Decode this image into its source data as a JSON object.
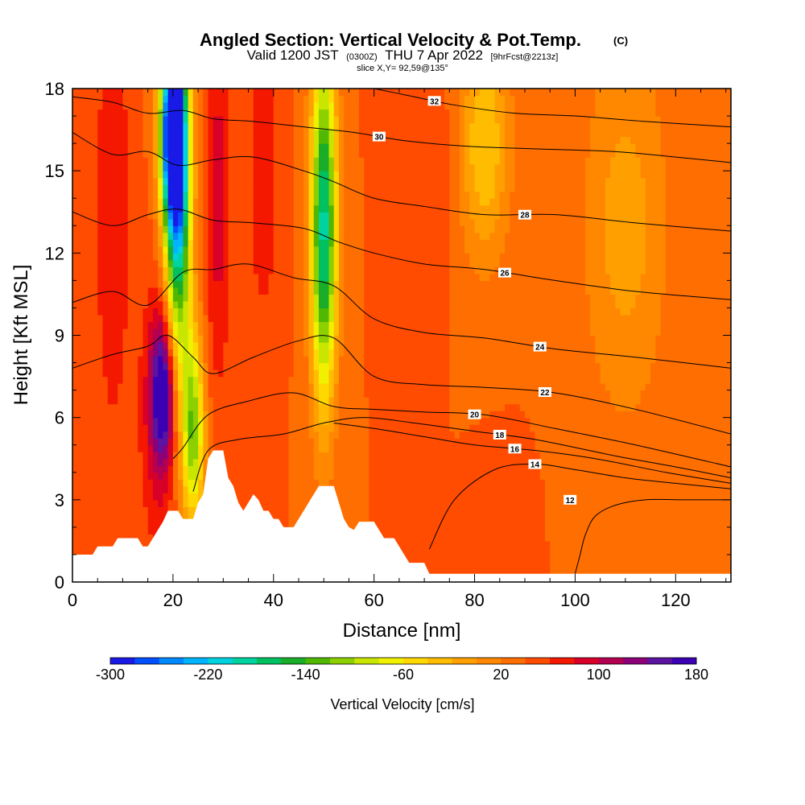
{
  "header": {
    "title_main": "Angled Section: Vertical Velocity & Pot.Temp.",
    "title_units": "(C)",
    "valid_prefix": "Valid 1200 JST",
    "valid_utc": "(0300Z)",
    "valid_date": "THU 7 Apr 2022",
    "valid_forecast": "[9hrFcst@2213z]",
    "slice_info": "slice X,Y= 92,59@135°"
  },
  "chart_data": {
    "type": "heatmap",
    "xlabel": "Distance [nm]",
    "ylabel": "Height [Kft MSL]",
    "xlim": [
      0,
      131
    ],
    "ylim": [
      0,
      18
    ],
    "x_ticks": [
      "0",
      "20",
      "40",
      "60",
      "80",
      "100",
      "120"
    ],
    "y_ticks": [
      "0",
      "3",
      "6",
      "9",
      "12",
      "15",
      "18"
    ],
    "grid": false,
    "background_velocity": 40,
    "velocity_features": [
      {
        "x": 8,
        "y": 13.5,
        "sx": 2.5,
        "sy": 6,
        "v": 80
      },
      {
        "x": 18,
        "y": 7,
        "sx": 1.6,
        "sy": 1.8,
        "v": 170
      },
      {
        "x": 17,
        "y": 6,
        "sx": 2.5,
        "sy": 3.5,
        "v": 90
      },
      {
        "x": 20,
        "y": 16.5,
        "sx": 1.7,
        "sy": 2.2,
        "v": -320
      },
      {
        "x": 21,
        "y": 13.5,
        "sx": 1.8,
        "sy": 4,
        "v": -200
      },
      {
        "x": 24,
        "y": 5.5,
        "sx": 1.6,
        "sy": 2.5,
        "v": -120
      },
      {
        "x": 29,
        "y": 14,
        "sx": 1.8,
        "sy": 5,
        "v": 90
      },
      {
        "x": 38,
        "y": 15,
        "sx": 2,
        "sy": 4,
        "v": 80
      },
      {
        "x": 50,
        "y": 13,
        "sx": 1.8,
        "sy": 4.5,
        "v": -190
      },
      {
        "x": 70,
        "y": 15.5,
        "sx": 3.5,
        "sy": 3,
        "v": 60
      },
      {
        "x": 82,
        "y": 16,
        "sx": 3.5,
        "sy": 3,
        "v": -40
      },
      {
        "x": 85,
        "y": 2,
        "sx": 3,
        "sy": 1.5,
        "v": 60
      },
      {
        "x": 110,
        "y": 13,
        "sx": 6,
        "sy": 5,
        "v": -10
      }
    ],
    "terrain_kft": [
      [
        0,
        1
      ],
      [
        4,
        1
      ],
      [
        5,
        1.3
      ],
      [
        8,
        1.3
      ],
      [
        9,
        1.6
      ],
      [
        13,
        1.6
      ],
      [
        14,
        1.3
      ],
      [
        15,
        1.3
      ],
      [
        16,
        1.6
      ],
      [
        17,
        1.9
      ],
      [
        18,
        2.2
      ],
      [
        19,
        2.6
      ],
      [
        21,
        2.6
      ],
      [
        22,
        2.3
      ],
      [
        24,
        2.3
      ],
      [
        25,
        2.9
      ],
      [
        26,
        3.2
      ],
      [
        27,
        4.5
      ],
      [
        28,
        4.8
      ],
      [
        30,
        4.8
      ],
      [
        31,
        3.8
      ],
      [
        32,
        3.5
      ],
      [
        33,
        2.9
      ],
      [
        34,
        2.6
      ],
      [
        35,
        2.9
      ],
      [
        36,
        3.2
      ],
      [
        37,
        3
      ],
      [
        38,
        2.6
      ],
      [
        39,
        2.6
      ],
      [
        40,
        2.3
      ],
      [
        41,
        2.3
      ],
      [
        42,
        2
      ],
      [
        44,
        2
      ],
      [
        45,
        2.3
      ],
      [
        46,
        2.6
      ],
      [
        47,
        2.9
      ],
      [
        48,
        3.2
      ],
      [
        49,
        3.5
      ],
      [
        52,
        3.5
      ],
      [
        53,
        2.9
      ],
      [
        54,
        2.3
      ],
      [
        55,
        2
      ],
      [
        56,
        1.9
      ],
      [
        57,
        2.2
      ],
      [
        60,
        2.2
      ],
      [
        61,
        1.9
      ],
      [
        62,
        1.6
      ],
      [
        64,
        1.6
      ],
      [
        65,
        1.3
      ],
      [
        66,
        1
      ],
      [
        67,
        0.7
      ],
      [
        70,
        0.7
      ],
      [
        71,
        0.3
      ],
      [
        131,
        0.3
      ]
    ],
    "contour_levels": [
      {
        "value": 12,
        "points": [
          [
            100,
            0.3
          ],
          [
            101,
            1
          ],
          [
            102,
            1.7
          ],
          [
            104,
            2.4
          ],
          [
            108,
            2.8
          ],
          [
            114,
            3
          ],
          [
            122,
            3
          ],
          [
            131,
            3
          ]
        ],
        "label_x": 99
      },
      {
        "value": 14,
        "points": [
          [
            71,
            1.2
          ],
          [
            76,
            3
          ],
          [
            84,
            4.1
          ],
          [
            92,
            4.3
          ],
          [
            100,
            4.1
          ],
          [
            110,
            3.8
          ],
          [
            120,
            3.6
          ],
          [
            131,
            3.4
          ]
        ],
        "label_x": 92
      },
      {
        "value": 16,
        "points": [
          [
            52,
            5.8
          ],
          [
            60,
            5.6
          ],
          [
            70,
            5.3
          ],
          [
            80,
            5
          ],
          [
            92,
            4.8
          ],
          [
            104,
            4.5
          ],
          [
            118,
            4
          ],
          [
            131,
            3.6
          ]
        ],
        "label_x": 88
      },
      {
        "value": 18,
        "points": [
          [
            24,
            3.3
          ],
          [
            27,
            4.8
          ],
          [
            33,
            5.2
          ],
          [
            42,
            5.4
          ],
          [
            50,
            5.8
          ],
          [
            58,
            6
          ],
          [
            68,
            5.8
          ],
          [
            80,
            5.5
          ],
          [
            92,
            5.2
          ],
          [
            108,
            4.6
          ],
          [
            120,
            4.2
          ],
          [
            131,
            3.8
          ]
        ],
        "label_x": 85
      },
      {
        "value": 20,
        "points": [
          [
            20,
            4.5
          ],
          [
            22,
            4.9
          ],
          [
            27,
            6.1
          ],
          [
            35,
            6.6
          ],
          [
            44,
            6.9
          ],
          [
            52,
            6.4
          ],
          [
            60,
            6.3
          ],
          [
            70,
            6.2
          ],
          [
            82,
            6.1
          ],
          [
            96,
            5.6
          ],
          [
            112,
            5
          ],
          [
            131,
            4.2
          ]
        ],
        "label_x": 80
      },
      {
        "value": 22,
        "points": [
          [
            0,
            7.8
          ],
          [
            8,
            8.3
          ],
          [
            15,
            8.6
          ],
          [
            19,
            9
          ],
          [
            24,
            8.2
          ],
          [
            28,
            7.6
          ],
          [
            36,
            8.2
          ],
          [
            45,
            8.8
          ],
          [
            52,
            8.9
          ],
          [
            60,
            7.5
          ],
          [
            70,
            7.2
          ],
          [
            82,
            7.1
          ],
          [
            96,
            6.9
          ],
          [
            112,
            6.3
          ],
          [
            131,
            5.4
          ]
        ],
        "label_x": 94
      },
      {
        "value": 24,
        "points": [
          [
            0,
            10.2
          ],
          [
            8,
            10.6
          ],
          [
            15,
            10.1
          ],
          [
            22,
            11.3
          ],
          [
            28,
            11.4
          ],
          [
            35,
            11.6
          ],
          [
            44,
            11.1
          ],
          [
            52,
            10.8
          ],
          [
            60,
            9.6
          ],
          [
            70,
            9.1
          ],
          [
            82,
            8.9
          ],
          [
            96,
            8.5
          ],
          [
            112,
            8.2
          ],
          [
            131,
            7.8
          ]
        ],
        "label_x": 93
      },
      {
        "value": 26,
        "points": [
          [
            0,
            13.5
          ],
          [
            8,
            13
          ],
          [
            15,
            13.4
          ],
          [
            21,
            13.6
          ],
          [
            28,
            13.2
          ],
          [
            36,
            13.1
          ],
          [
            46,
            12.9
          ],
          [
            53,
            12.4
          ],
          [
            60,
            12
          ],
          [
            70,
            11.6
          ],
          [
            82,
            11.4
          ],
          [
            96,
            11
          ],
          [
            112,
            10.6
          ],
          [
            131,
            10.3
          ]
        ],
        "label_x": 86
      },
      {
        "value": 28,
        "points": [
          [
            0,
            16.4
          ],
          [
            8,
            15.6
          ],
          [
            15,
            15.7
          ],
          [
            21,
            15.2
          ],
          [
            28,
            15.4
          ],
          [
            36,
            15.5
          ],
          [
            46,
            15
          ],
          [
            52,
            14.6
          ],
          [
            60,
            14
          ],
          [
            70,
            13.7
          ],
          [
            82,
            13.4
          ],
          [
            96,
            13.4
          ],
          [
            112,
            13.1
          ],
          [
            131,
            12.8
          ]
        ],
        "label_x": 90
      },
      {
        "value": 30,
        "points": [
          [
            0,
            17.7
          ],
          [
            8,
            17.5
          ],
          [
            15,
            17.1
          ],
          [
            22,
            17.2
          ],
          [
            28,
            16.9
          ],
          [
            36,
            16.8
          ],
          [
            46,
            16.6
          ],
          [
            56,
            16.4
          ],
          [
            66,
            16.1
          ],
          [
            78,
            15.9
          ],
          [
            92,
            15.8
          ],
          [
            108,
            15.7
          ],
          [
            120,
            15.5
          ],
          [
            131,
            15.3
          ]
        ],
        "label_x": 61
      },
      {
        "value": 32,
        "points": [
          [
            60,
            18
          ],
          [
            68,
            17.7
          ],
          [
            76,
            17.4
          ],
          [
            88,
            17.1
          ],
          [
            100,
            17
          ],
          [
            114,
            16.8
          ],
          [
            131,
            16.6
          ]
        ],
        "label_x": 72
      }
    ],
    "colorbar": {
      "label": "Vertical Velocity [cm/s]",
      "min": -300,
      "max": 180,
      "step": 20,
      "tick_labels": [
        "-300",
        "-220",
        "-140",
        "-60",
        "20",
        "100",
        "180"
      ],
      "colors": [
        "#1a1ae6",
        "#0050ff",
        "#0088ff",
        "#00b4ff",
        "#00d2e0",
        "#00d2a0",
        "#00c060",
        "#1aad2a",
        "#50b800",
        "#8cd000",
        "#c8e600",
        "#f0f000",
        "#ffd800",
        "#ffbc00",
        "#ffa000",
        "#ff8800",
        "#ff6e00",
        "#ff4c00",
        "#f51800",
        "#d80028",
        "#b40050",
        "#8c0078",
        "#5a14a0",
        "#3c00b4"
      ]
    }
  }
}
